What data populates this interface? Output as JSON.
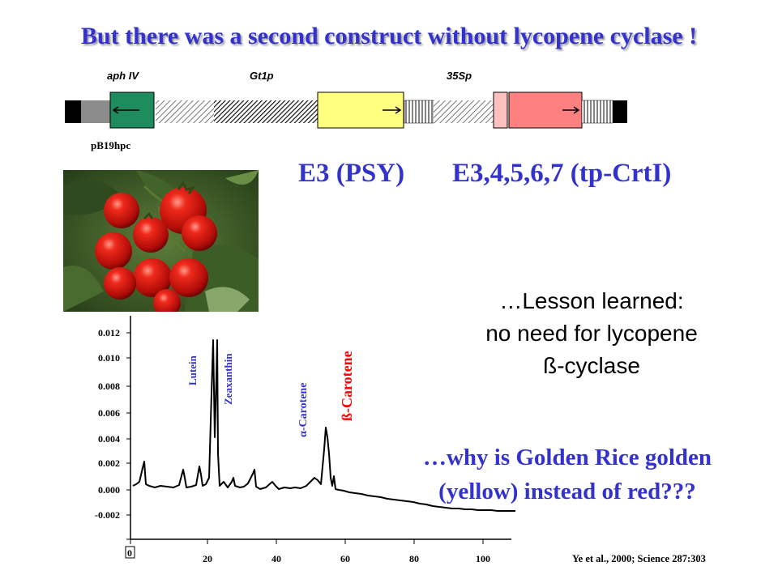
{
  "title": "But there was a second construct without lycopene cyclase !",
  "construct": {
    "gene_labels": [
      "aph IV",
      "Gt1p",
      "35Sp"
    ],
    "plasmid": "pB19hpc"
  },
  "constructs": {
    "psy": "E3 (PSY)",
    "crtI": "E3,4,5,6,7 (tp-CrtI)"
  },
  "lesson": {
    "line1": "…Lesson learned:",
    "line2": "no need for lycopene",
    "line3": "ß-cyclase"
  },
  "question": {
    "line1": "…why is Golden Rice golden",
    "line2": "(yellow) instead of red???"
  },
  "citation": "Ye et al., 2000; Science 287:303",
  "chart_data": {
    "type": "line",
    "y_ticks": [
      "0.012",
      "0.010",
      "0.008",
      "0.006",
      "0.004",
      "0.002",
      "0.000",
      "-0.002"
    ],
    "x_ticks": [
      "0",
      "20",
      "40",
      "60",
      "80",
      "100"
    ],
    "peaks": [
      {
        "name": "Lutein",
        "color": "#3333cc"
      },
      {
        "name": "Zeaxanthin",
        "color": "#3333cc"
      },
      {
        "name": "α-Carotene",
        "color": "#3333cc"
      },
      {
        "name": "ß-Carotene",
        "color": "#ff0000"
      }
    ]
  },
  "colors": {
    "title": "#3333cc",
    "aph_box": "#1e8c5c",
    "gt1p_box": "#ffff80",
    "sp35_box": "#ff8080"
  }
}
